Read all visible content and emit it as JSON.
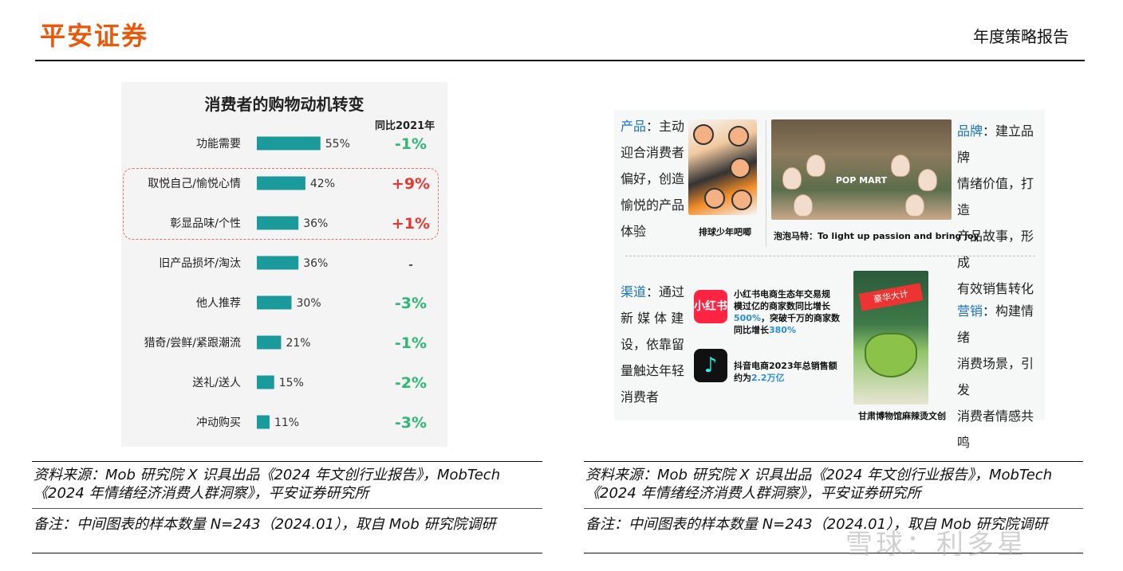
{
  "header": {
    "brand": "平安证券",
    "report_title": "年度策略报告"
  },
  "left_chart": {
    "title": "消费者的购物动机转变",
    "yoy_header": "同比2021年",
    "bar_color": "#1a9a9a",
    "yoy_color": "#2eb872",
    "yoy_up_color": "#e53935",
    "highlight_color": "#e57373"
  },
  "chart_data": {
    "type": "bar",
    "orientation": "horizontal",
    "title": "消费者的购物动机转变",
    "categories": [
      "功能需要",
      "取悦自己/愉悦心情",
      "彰显品味/个性",
      "旧产品损坏/淘汰",
      "他人推荐",
      "猎奇/尝鲜/紧跟潮流",
      "送礼/送人",
      "冲动购买"
    ],
    "values": [
      55,
      42,
      36,
      36,
      30,
      21,
      15,
      11
    ],
    "value_labels": [
      "55%",
      "42%",
      "36%",
      "36%",
      "30%",
      "21%",
      "15%",
      "11%"
    ],
    "yoy_change": [
      "-1%",
      "+9%",
      "+1%",
      "-",
      "-3%",
      "-1%",
      "-2%",
      "-3%"
    ],
    "highlighted_categories": [
      "取悦自己/愉悦心情",
      "彰显品味/个性"
    ],
    "xlim": [
      0,
      100
    ]
  },
  "right_panel": {
    "product_label": "产品",
    "product_lines": [
      "：主动",
      "迎合消费者",
      "偏好，创造",
      "愉悦的产品",
      "体验"
    ],
    "haikyu_caption": "排球少年吧唧",
    "popmart_logo": "POP MART",
    "popmart_caption": "泡泡马特：To light up passion and bring joy",
    "brand_label": "品牌",
    "brand_lines": [
      "：建立品牌",
      "情绪价值，打造",
      "产品故事，形成",
      "有效销售转化"
    ],
    "channel_label": "渠道",
    "channel_lines": [
      "：通过",
      "新 媒 体 建",
      "设，依靠留",
      "量触达年轻",
      "消费者"
    ],
    "xhs_logo": "小红书",
    "xhs_stat_1": "小红书电商生态年交易规",
    "xhs_stat_2": "模过亿的商家数同比增长",
    "xhs_stat_3a": "500%",
    "xhs_stat_3b": "，突破千万的商家数",
    "xhs_stat_4a": "同比增长",
    "xhs_stat_4b": "380%",
    "dy_logo": "♪",
    "dy_stat_1": "抖音电商2023年总销售额",
    "dy_stat_2a": "约为",
    "dy_stat_2b": "2.2万亿",
    "product_banner": "豪华大计",
    "product_caption": "甘肃博物馆麻辣烫文创",
    "marketing_label": "营销",
    "marketing_lines": [
      "：构建情绪",
      "消费场景，引发",
      "消费者情感共鸣"
    ]
  },
  "footnotes": {
    "left_source": "资料来源：Mob 研究院 X 识具出品《2024 年文创行业报告》，MobTech《2024 年情绪经济消费人群洞察》，平安证券研究所",
    "left_note": "备注：中间图表的样本数量 N=243（2024.01），取自 Mob 研究院调研",
    "right_source": "资料来源：Mob 研究院 X 识具出品《2024 年文创行业报告》，MobTech《2024 年情绪经济消费人群洞察》，平安证券研究所",
    "right_note": "备注：中间图表的样本数量 N=243（2024.01），取自 Mob 研究院调研"
  },
  "watermark": "雪球：利多星"
}
